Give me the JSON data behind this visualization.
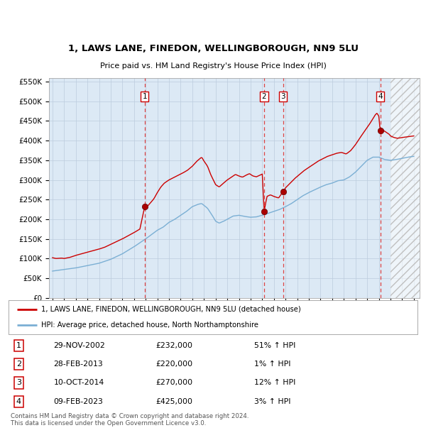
{
  "title": "1, LAWS LANE, FINEDON, WELLINGBOROUGH, NN9 5LU",
  "subtitle": "Price paid vs. HM Land Registry's House Price Index (HPI)",
  "ylim": [
    0,
    560000
  ],
  "yticks": [
    0,
    50000,
    100000,
    150000,
    200000,
    250000,
    300000,
    350000,
    400000,
    450000,
    500000,
    550000
  ],
  "xlim_start": 1994.7,
  "xlim_end": 2026.5,
  "xticks": [
    1995,
    1996,
    1997,
    1998,
    1999,
    2000,
    2001,
    2002,
    2003,
    2004,
    2005,
    2006,
    2007,
    2008,
    2009,
    2010,
    2011,
    2012,
    2013,
    2014,
    2015,
    2016,
    2017,
    2018,
    2019,
    2020,
    2021,
    2022,
    2023,
    2024,
    2025,
    2026
  ],
  "red_line_color": "#cc0000",
  "blue_line_color": "#7bafd4",
  "background_color": "#dce9f5",
  "sale_dates": [
    2002.91,
    2013.16,
    2014.78,
    2023.12
  ],
  "sale_prices": [
    232000,
    220000,
    270000,
    425000
  ],
  "sale_labels": [
    "1",
    "2",
    "3",
    "4"
  ],
  "vline_color": "#dd4444",
  "legend_line1": "1, LAWS LANE, FINEDON, WELLINGBOROUGH, NN9 5LU (detached house)",
  "legend_line2": "HPI: Average price, detached house, North Northamptonshire",
  "table_data": [
    [
      "1",
      "29-NOV-2002",
      "£232,000",
      "51% ↑ HPI"
    ],
    [
      "2",
      "28-FEB-2013",
      "£220,000",
      "1% ↑ HPI"
    ],
    [
      "3",
      "10-OCT-2014",
      "£270,000",
      "12% ↑ HPI"
    ],
    [
      "4",
      "09-FEB-2023",
      "£425,000",
      "3% ↑ HPI"
    ]
  ],
  "footnote": "Contains HM Land Registry data © Crown copyright and database right 2024.\nThis data is licensed under the Open Government Licence v3.0.",
  "future_start": 2024.0,
  "hpi_control_points": [
    [
      1995.0,
      68000
    ],
    [
      1996.0,
      72000
    ],
    [
      1997.0,
      76000
    ],
    [
      1998.0,
      82000
    ],
    [
      1999.0,
      88000
    ],
    [
      2000.0,
      98000
    ],
    [
      2001.0,
      112000
    ],
    [
      2002.0,
      130000
    ],
    [
      2003.0,
      150000
    ],
    [
      2004.0,
      172000
    ],
    [
      2004.5,
      180000
    ],
    [
      2005.0,
      192000
    ],
    [
      2005.5,
      200000
    ],
    [
      2006.0,
      210000
    ],
    [
      2006.5,
      220000
    ],
    [
      2007.0,
      232000
    ],
    [
      2007.5,
      238000
    ],
    [
      2007.8,
      240000
    ],
    [
      2008.3,
      228000
    ],
    [
      2008.7,
      210000
    ],
    [
      2009.0,
      195000
    ],
    [
      2009.3,
      190000
    ],
    [
      2009.7,
      195000
    ],
    [
      2010.0,
      200000
    ],
    [
      2010.5,
      208000
    ],
    [
      2011.0,
      210000
    ],
    [
      2011.5,
      207000
    ],
    [
      2012.0,
      205000
    ],
    [
      2012.5,
      206000
    ],
    [
      2013.0,
      210000
    ],
    [
      2013.5,
      215000
    ],
    [
      2014.0,
      220000
    ],
    [
      2014.5,
      225000
    ],
    [
      2015.0,
      232000
    ],
    [
      2015.5,
      240000
    ],
    [
      2016.0,
      250000
    ],
    [
      2016.5,
      260000
    ],
    [
      2017.0,
      268000
    ],
    [
      2017.5,
      275000
    ],
    [
      2018.0,
      282000
    ],
    [
      2018.5,
      288000
    ],
    [
      2019.0,
      292000
    ],
    [
      2019.5,
      298000
    ],
    [
      2020.0,
      300000
    ],
    [
      2020.5,
      308000
    ],
    [
      2021.0,
      320000
    ],
    [
      2021.5,
      335000
    ],
    [
      2022.0,
      350000
    ],
    [
      2022.5,
      358000
    ],
    [
      2023.0,
      358000
    ],
    [
      2023.5,
      352000
    ],
    [
      2024.0,
      350000
    ],
    [
      2024.5,
      352000
    ],
    [
      2025.0,
      355000
    ],
    [
      2025.5,
      358000
    ],
    [
      2026.0,
      360000
    ]
  ],
  "prop_control_points": [
    [
      1995.0,
      102000
    ],
    [
      1995.3,
      100000
    ],
    [
      1995.8,
      101000
    ],
    [
      1996.0,
      100000
    ],
    [
      1996.5,
      103000
    ],
    [
      1997.0,
      108000
    ],
    [
      1997.5,
      112000
    ],
    [
      1998.0,
      116000
    ],
    [
      1998.5,
      120000
    ],
    [
      1999.0,
      124000
    ],
    [
      1999.5,
      129000
    ],
    [
      2000.0,
      136000
    ],
    [
      2000.5,
      143000
    ],
    [
      2001.0,
      150000
    ],
    [
      2001.5,
      158000
    ],
    [
      2002.0,
      166000
    ],
    [
      2002.5,
      175000
    ],
    [
      2002.91,
      232000
    ],
    [
      2003.0,
      228000
    ],
    [
      2003.3,
      238000
    ],
    [
      2003.7,
      252000
    ],
    [
      2004.0,
      268000
    ],
    [
      2004.3,
      282000
    ],
    [
      2004.6,
      292000
    ],
    [
      2005.0,
      300000
    ],
    [
      2005.4,
      306000
    ],
    [
      2005.8,
      312000
    ],
    [
      2006.2,
      318000
    ],
    [
      2006.6,
      325000
    ],
    [
      2007.0,
      335000
    ],
    [
      2007.4,
      348000
    ],
    [
      2007.8,
      358000
    ],
    [
      2008.0,
      348000
    ],
    [
      2008.3,
      335000
    ],
    [
      2008.6,
      312000
    ],
    [
      2009.0,
      288000
    ],
    [
      2009.3,
      282000
    ],
    [
      2009.6,
      290000
    ],
    [
      2010.0,
      300000
    ],
    [
      2010.4,
      308000
    ],
    [
      2010.7,
      314000
    ],
    [
      2011.0,
      310000
    ],
    [
      2011.3,
      307000
    ],
    [
      2011.6,
      312000
    ],
    [
      2011.9,
      316000
    ],
    [
      2012.2,
      310000
    ],
    [
      2012.5,
      308000
    ],
    [
      2012.8,
      312000
    ],
    [
      2013.0,
      315000
    ],
    [
      2013.16,
      220000
    ],
    [
      2013.4,
      258000
    ],
    [
      2013.7,
      262000
    ],
    [
      2014.0,
      258000
    ],
    [
      2014.4,
      254000
    ],
    [
      2014.78,
      270000
    ],
    [
      2015.0,
      280000
    ],
    [
      2015.4,
      292000
    ],
    [
      2015.8,
      304000
    ],
    [
      2016.2,
      314000
    ],
    [
      2016.6,
      324000
    ],
    [
      2017.0,
      332000
    ],
    [
      2017.4,
      340000
    ],
    [
      2017.8,
      348000
    ],
    [
      2018.2,
      354000
    ],
    [
      2018.6,
      360000
    ],
    [
      2019.0,
      364000
    ],
    [
      2019.4,
      368000
    ],
    [
      2019.8,
      370000
    ],
    [
      2020.2,
      366000
    ],
    [
      2020.6,
      375000
    ],
    [
      2021.0,
      390000
    ],
    [
      2021.4,
      408000
    ],
    [
      2021.8,
      425000
    ],
    [
      2022.2,
      442000
    ],
    [
      2022.5,
      456000
    ],
    [
      2022.7,
      466000
    ],
    [
      2022.85,
      470000
    ],
    [
      2023.0,
      462000
    ],
    [
      2023.12,
      425000
    ],
    [
      2023.3,
      428000
    ],
    [
      2023.6,
      422000
    ],
    [
      2023.9,
      416000
    ],
    [
      2024.0,
      412000
    ],
    [
      2024.3,
      408000
    ],
    [
      2024.6,
      406000
    ],
    [
      2025.0,
      408000
    ],
    [
      2025.5,
      410000
    ],
    [
      2026.0,
      412000
    ]
  ]
}
